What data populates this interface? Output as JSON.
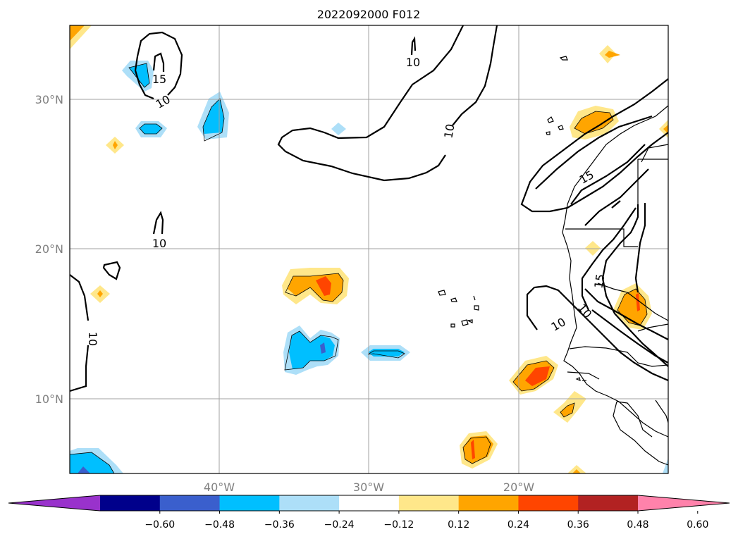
{
  "title": "2022092000 F012",
  "map": {
    "lat_labels": [
      "30°N",
      "20°N",
      "10°N"
    ],
    "lon_labels": [
      "40°W",
      "30°W",
      "20°W"
    ],
    "lat_range": [
      5,
      35
    ],
    "lon_range": [
      -50,
      -10
    ],
    "gridlines": true,
    "contour_labels": [
      "15",
      "10",
      "10",
      "10",
      "10",
      "10",
      "15",
      "15",
      "10",
      "10",
      "10"
    ]
  },
  "colorbar": {
    "ticks": [
      "−0.60",
      "−0.48",
      "−0.36",
      "−0.24",
      "−0.12",
      "0.12",
      "0.24",
      "0.36",
      "0.48",
      "0.60"
    ],
    "colors": [
      "#9932CC",
      "#00008B",
      "#3A5FCD",
      "#00BFFF",
      "#ADDFF8",
      "#FFFFFF",
      "#FFE78A",
      "#FFA500",
      "#FF4500",
      "#B22222",
      "#FF82AB"
    ]
  }
}
